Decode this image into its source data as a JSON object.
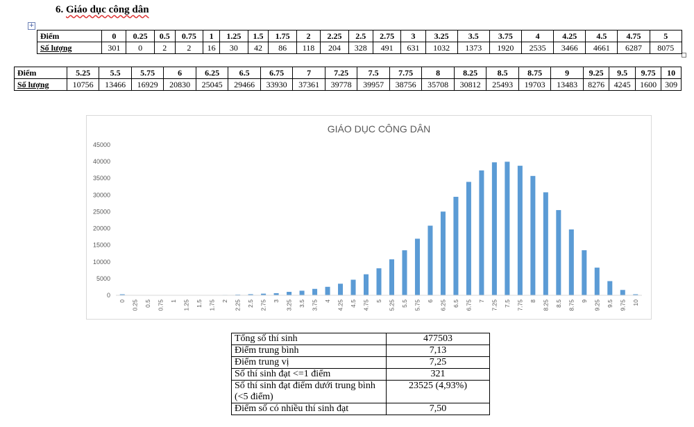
{
  "section": {
    "number": "6.",
    "title": "Giáo dục công dân"
  },
  "anchor_icon": "move-anchor-icon",
  "tables": {
    "row_label_score": "Điểm",
    "row_label_count": "Số lượng",
    "part1": {
      "scores": [
        "0",
        "0.25",
        "0.5",
        "0.75",
        "1",
        "1.25",
        "1.5",
        "1.75",
        "2",
        "2.25",
        "2.5",
        "2.75",
        "3",
        "3.25",
        "3.5",
        "3.75",
        "4",
        "4.25",
        "4.5",
        "4.75",
        "5"
      ],
      "counts": [
        "301",
        "0",
        "2",
        "2",
        "16",
        "30",
        "42",
        "86",
        "118",
        "204",
        "328",
        "491",
        "631",
        "1032",
        "1373",
        "1920",
        "2535",
        "3466",
        "4661",
        "6287",
        "8075"
      ]
    },
    "part2": {
      "scores": [
        "5.25",
        "5.5",
        "5.75",
        "6",
        "6.25",
        "6.5",
        "6.75",
        "7",
        "7.25",
        "7.5",
        "7.75",
        "8",
        "8.25",
        "8.5",
        "8.75",
        "9",
        "9.25",
        "9.5",
        "9.75",
        "10"
      ],
      "counts": [
        "10756",
        "13466",
        "16929",
        "20830",
        "25045",
        "29466",
        "33930",
        "37361",
        "39778",
        "39957",
        "38756",
        "35708",
        "30812",
        "25493",
        "19703",
        "13483",
        "8276",
        "4245",
        "1600",
        "309"
      ]
    }
  },
  "chart_data": {
    "type": "bar",
    "title": "GIÁO DỤC CÔNG DÂN",
    "xlabel": "",
    "ylabel": "",
    "ylim": [
      0,
      45000
    ],
    "yticks": [
      0,
      5000,
      10000,
      15000,
      20000,
      25000,
      30000,
      35000,
      40000,
      45000
    ],
    "grid": false,
    "bar_color": "#5b9bd5",
    "categories": [
      "0",
      "0.25",
      "0.5",
      "0.75",
      "1",
      "1.25",
      "1.5",
      "1.75",
      "2",
      "2.25",
      "2.5",
      "2.75",
      "3",
      "3.25",
      "3.5",
      "3.75",
      "4",
      "4.25",
      "4.5",
      "4.75",
      "5",
      "5.25",
      "5.5",
      "5.75",
      "6",
      "6.25",
      "6.5",
      "6.75",
      "7",
      "7.25",
      "7.5",
      "7.75",
      "8",
      "8.25",
      "8.5",
      "8.75",
      "9",
      "9.25",
      "9.5",
      "9.75",
      "10"
    ],
    "values": [
      301,
      0,
      2,
      2,
      16,
      30,
      42,
      86,
      118,
      204,
      328,
      491,
      631,
      1032,
      1373,
      1920,
      2535,
      3466,
      4661,
      6287,
      8075,
      10756,
      13466,
      16929,
      20830,
      25045,
      29466,
      33930,
      37361,
      39778,
      39957,
      38756,
      35708,
      30812,
      25493,
      19703,
      13483,
      8276,
      4245,
      1600,
      309
    ]
  },
  "stats": [
    {
      "label": "Tổng số thí sinh",
      "value": "477503"
    },
    {
      "label": "Điểm trung bình",
      "value": "7,13"
    },
    {
      "label": "Điểm trung vị",
      "value": "7,25"
    },
    {
      "label": "Số thí sinh đạt <=1 điểm",
      "value": "321"
    },
    {
      "label": "Số thí sinh đạt điểm dưới trung bình (<5 điểm)",
      "value": "23525 (4,93%)"
    },
    {
      "label": "Điểm số có nhiều thí sinh đạt",
      "value": "7,50"
    }
  ]
}
